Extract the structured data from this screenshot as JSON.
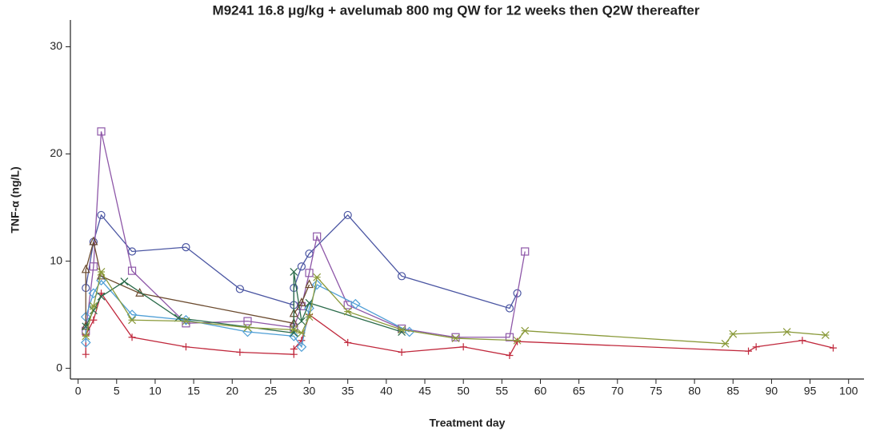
{
  "chart_data": {
    "type": "line",
    "title": "M9241 16.8 μg/kg + avelumab 800 mg QW for 12 weeks then Q2W thereafter",
    "x_label": "Treatment day",
    "y_label": "TNF-α (ng/L)",
    "xlim": [
      -1,
      102
    ],
    "ylim": [
      -1,
      32.5
    ],
    "xticks": [
      0,
      5,
      10,
      15,
      20,
      25,
      30,
      35,
      40,
      45,
      50,
      55,
      60,
      65,
      70,
      75,
      80,
      85,
      90,
      95,
      100
    ],
    "yticks": [
      0,
      10,
      20,
      30
    ],
    "series": [
      {
        "color": "#4a55a2",
        "marker": "circle",
        "x": [
          1,
          2,
          3,
          7,
          14,
          21,
          28,
          28,
          29,
          30,
          35,
          42,
          56,
          57
        ],
        "values": [
          7.5,
          11.8,
          14.3,
          10.9,
          11.3,
          7.4,
          5.9,
          7.5,
          9.5,
          10.7,
          14.3,
          8.6,
          5.6,
          7.0
        ]
      },
      {
        "color": "#8e57a8",
        "marker": "square",
        "x": [
          1,
          2,
          3,
          7,
          14,
          22,
          28,
          29,
          30,
          31,
          35,
          42,
          49,
          56,
          58
        ],
        "values": [
          3.5,
          9.5,
          22.1,
          9.1,
          4.2,
          4.4,
          3.8,
          5.8,
          8.9,
          12.3,
          5.9,
          3.7,
          2.9,
          2.9,
          10.9
        ]
      },
      {
        "color": "#c0283c",
        "marker": "plus",
        "x": [
          1,
          1,
          2,
          3,
          7,
          14,
          21,
          28,
          28,
          29,
          30,
          35,
          42,
          50,
          56,
          57,
          87,
          88,
          94,
          98
        ],
        "values": [
          1.3,
          3.1,
          4.5,
          7.0,
          2.9,
          2.0,
          1.5,
          1.3,
          1.8,
          2.6,
          5.0,
          2.4,
          1.5,
          2.0,
          1.2,
          2.5,
          1.6,
          2.0,
          2.6,
          1.9
        ]
      },
      {
        "color": "#4f9fd6",
        "marker": "diamond",
        "x": [
          1,
          1,
          2,
          3,
          7,
          14,
          22,
          28,
          29,
          30,
          31,
          36,
          43
        ],
        "values": [
          2.4,
          4.8,
          7.0,
          8.2,
          5.0,
          4.5,
          3.4,
          3.0,
          2.0,
          5.6,
          7.8,
          6.0,
          3.4
        ]
      },
      {
        "color": "#6b4a2e",
        "marker": "triangle",
        "x": [
          1,
          1,
          2,
          3,
          8,
          28,
          28,
          29,
          30
        ],
        "values": [
          3.9,
          9.2,
          11.8,
          8.6,
          7.0,
          4.2,
          5.1,
          6.1,
          7.8
        ]
      },
      {
        "color": "#2a6b4a",
        "marker": "x",
        "x": [
          1,
          2,
          3,
          6,
          13,
          28,
          28,
          29,
          30,
          42
        ],
        "values": [
          3.9,
          5.4,
          6.7,
          8.1,
          4.7,
          3.3,
          9.0,
          4.4,
          6.1,
          3.4
        ]
      },
      {
        "color": "#8a9a3a",
        "marker": "asterisk",
        "x": [
          1,
          2,
          3,
          7,
          14,
          22,
          28,
          29,
          30,
          31,
          35,
          42,
          49,
          57,
          58,
          84,
          85,
          92,
          97
        ],
        "values": [
          3.0,
          5.8,
          9.0,
          4.5,
          4.4,
          3.8,
          3.6,
          3.3,
          4.8,
          8.5,
          5.3,
          3.6,
          2.8,
          2.6,
          3.5,
          2.3,
          3.2,
          3.4,
          3.1
        ]
      }
    ]
  }
}
